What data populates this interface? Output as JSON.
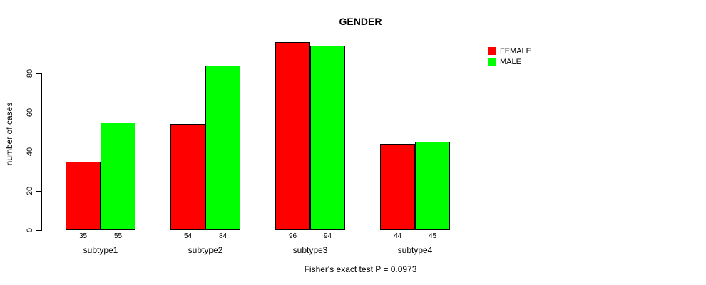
{
  "chart_data": {
    "type": "bar",
    "title": "GENDER",
    "ylabel": "number of cases",
    "xlabel": "",
    "categories": [
      "subtype1",
      "subtype2",
      "subtype3",
      "subtype4"
    ],
    "series": [
      {
        "name": "FEMALE",
        "color": "#FF0000",
        "values": [
          35,
          54,
          96,
          44
        ]
      },
      {
        "name": "MALE",
        "color": "#00FF00",
        "values": [
          55,
          84,
          94,
          45
        ]
      }
    ],
    "yticks": [
      0,
      20,
      40,
      60,
      80
    ],
    "ylim": [
      0,
      96.4
    ],
    "bar_value_labels": [
      [
        35,
        54,
        96,
        44
      ],
      [
        55,
        84,
        94,
        45
      ]
    ],
    "legend_position": "top-right",
    "grid": false,
    "annotation": "Fisher's exact test P = 0.0973"
  }
}
